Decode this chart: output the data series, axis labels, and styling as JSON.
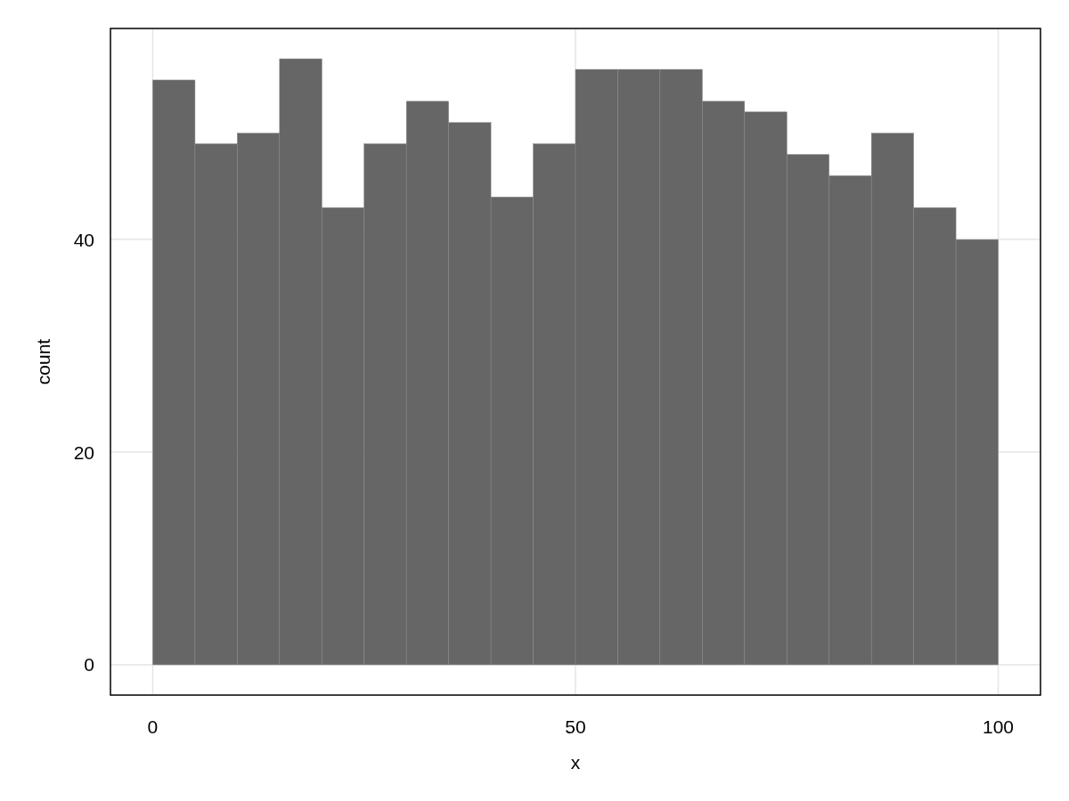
{
  "chart_data": {
    "type": "histogram",
    "xlabel": "x",
    "ylabel": "count",
    "bins": [
      0,
      5,
      10,
      15,
      20,
      25,
      30,
      35,
      40,
      45,
      50,
      55,
      60,
      65,
      70,
      75,
      80,
      85,
      90,
      95,
      100
    ],
    "values": [
      55,
      49,
      50,
      57,
      43,
      49,
      53,
      51,
      44,
      49,
      56,
      56,
      56,
      53,
      52,
      48,
      46,
      50,
      43,
      40
    ],
    "color": "#666666",
    "xlim": [
      -5,
      105
    ],
    "xticks": [
      0,
      50,
      100
    ],
    "ylim": [
      -2.85,
      59.85
    ],
    "yticks": [
      0,
      20,
      40
    ],
    "grid": true
  }
}
